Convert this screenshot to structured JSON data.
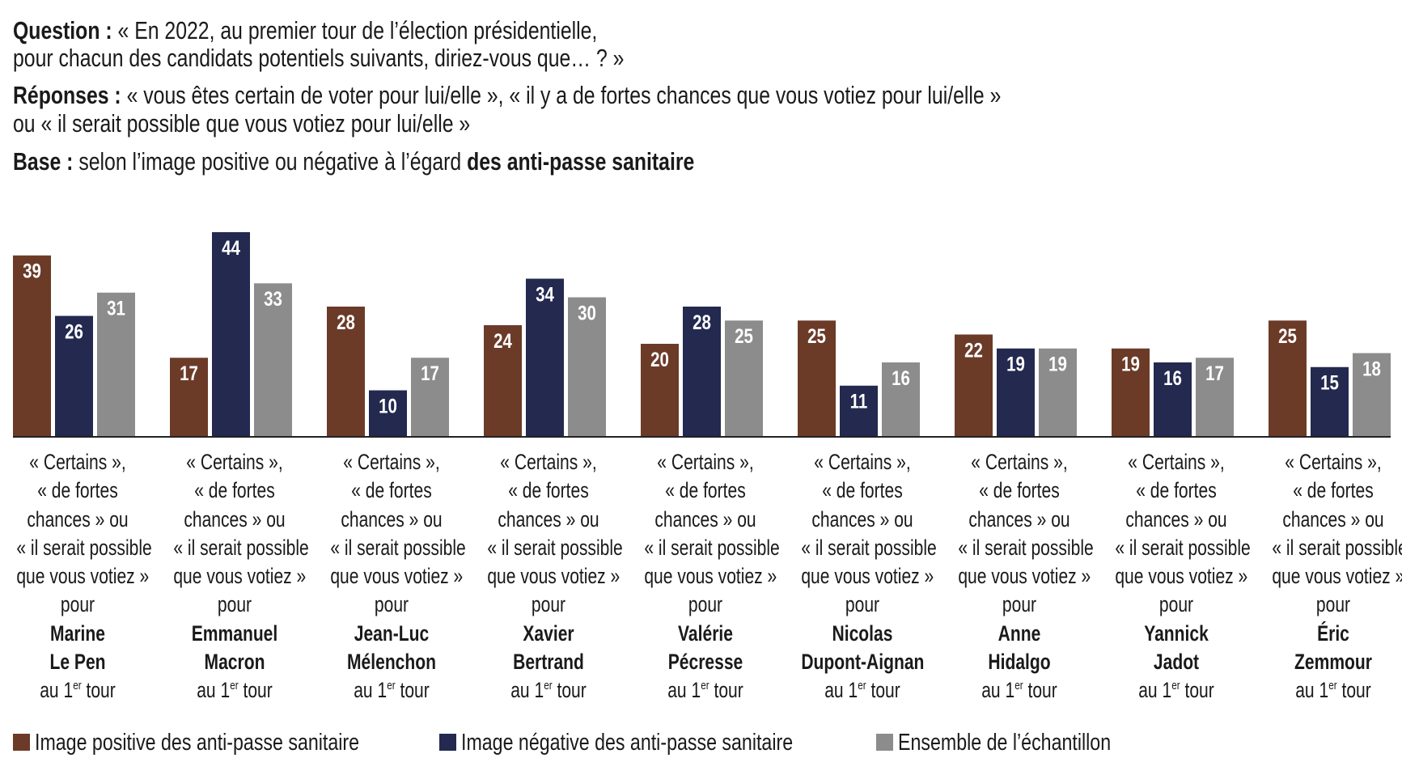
{
  "header": {
    "question_label": "Question :",
    "question_line1": " « En 2022, au premier tour de l’élection présidentielle,",
    "question_line2": "pour chacun des candidats potentiels suivants, diriez-vous que… ? »",
    "responses_label": "Réponses :",
    "responses_line1": " « vous êtes certain de voter pour lui/elle », « il y a de fortes chances que vous votiez pour lui/elle »",
    "responses_line2": "ou « il serait possible que vous votiez pour lui/elle »",
    "base_label": "Base :",
    "base_text": " selon l’image positive ou négative à l’égard ",
    "base_bold": "des anti-passe sanitaire"
  },
  "category_template": {
    "line1": "« Certains »,",
    "line2": "« de fortes",
    "line3": "chances » ou",
    "line4": "« il serait possible",
    "line5": "que vous votiez »",
    "line6": "pour",
    "round_prefix": "au 1",
    "round_sup": "er",
    "round_suffix": " tour"
  },
  "chart_data": {
    "type": "bar",
    "title": "",
    "xlabel": "",
    "ylabel": "",
    "ylim": [
      0,
      44
    ],
    "grid": false,
    "legend_position": "bottom-left",
    "categories": [
      {
        "first": "Marine",
        "last": "Le Pen"
      },
      {
        "first": "Emmanuel",
        "last": "Macron"
      },
      {
        "first": "Jean-Luc",
        "last": "Mélenchon"
      },
      {
        "first": "Xavier",
        "last": "Bertrand"
      },
      {
        "first": "Valérie",
        "last": "Pécresse"
      },
      {
        "first": "Nicolas",
        "last": "Dupont-Aignan"
      },
      {
        "first": "Anne",
        "last": "Hidalgo"
      },
      {
        "first": "Yannick",
        "last": "Jadot"
      },
      {
        "first": "Éric",
        "last": "Zemmour"
      }
    ],
    "series": [
      {
        "name": "Image positive des anti-passe sanitaire",
        "color": "#6b3b28",
        "values": [
          39,
          17,
          28,
          24,
          20,
          25,
          22,
          19,
          25
        ]
      },
      {
        "name": "Image négative des anti-passe sanitaire",
        "color": "#23294f",
        "values": [
          26,
          44,
          10,
          34,
          28,
          11,
          19,
          16,
          15
        ]
      },
      {
        "name": "Ensemble de l’échantillon",
        "color": "#8c8c8c",
        "values": [
          31,
          33,
          17,
          30,
          25,
          16,
          19,
          17,
          18
        ]
      }
    ]
  }
}
